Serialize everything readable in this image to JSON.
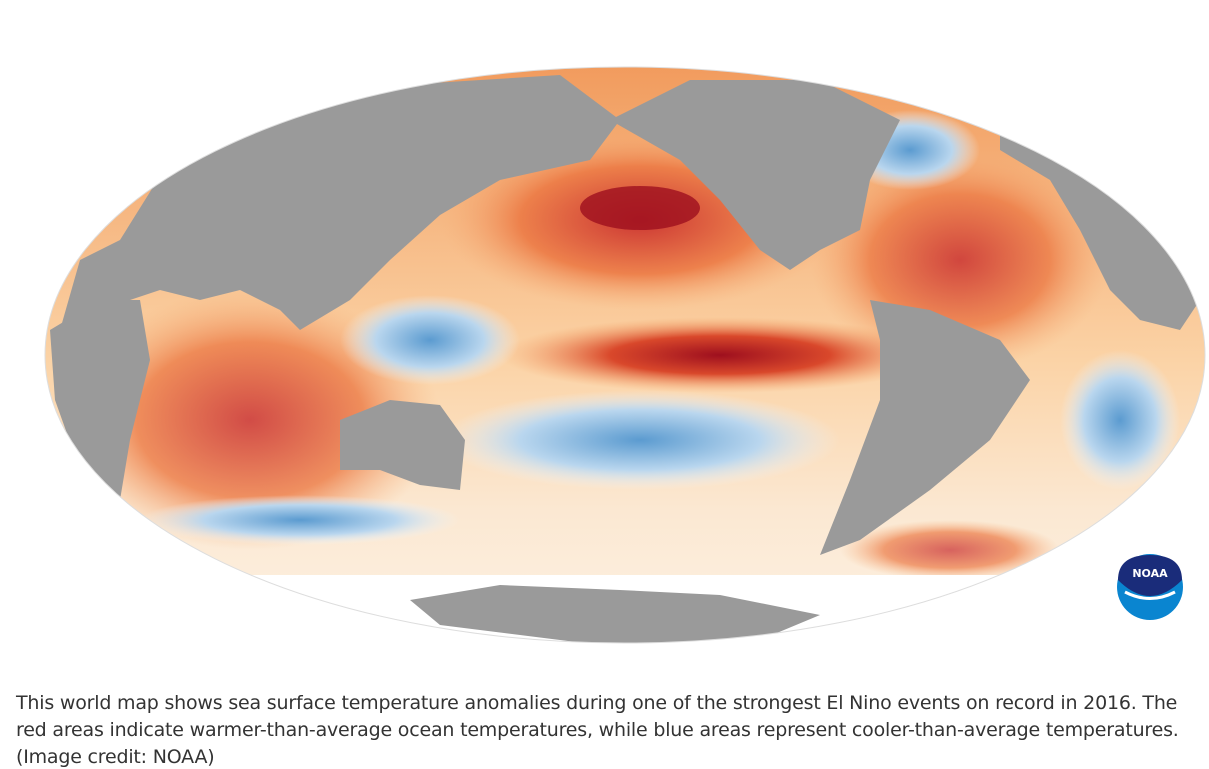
{
  "logo": {
    "text": "NOAA"
  },
  "caption": "This world map shows sea surface temperature anomalies during one of the strongest El Nino events on record in 2016. The red areas indicate warmer-than-average ocean temperatures, while blue areas represent cooler-than-average temperatures. (Image credit: NOAA)"
}
